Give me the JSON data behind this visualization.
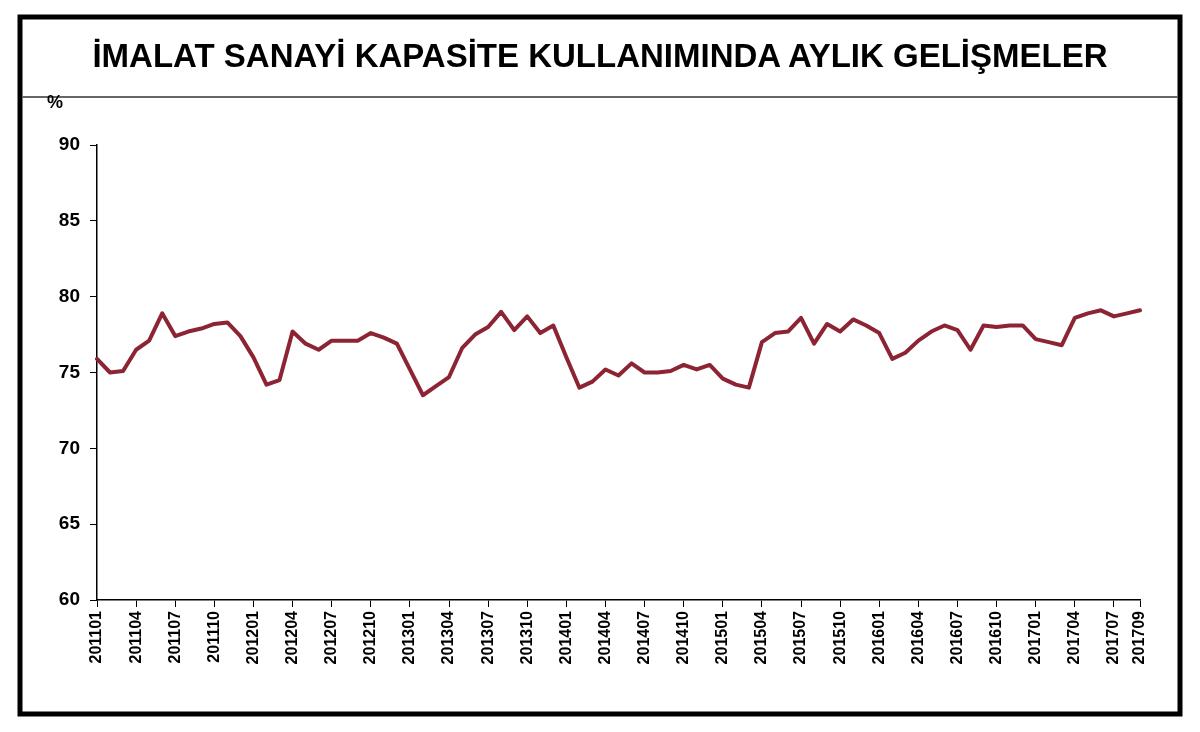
{
  "chart_data": {
    "type": "line",
    "title": "İMALAT SANAYİ KAPASİTE KULLANIMINDA AYLIK GELİŞMELER",
    "ylabel": "%",
    "categories": [
      "201101",
      null,
      null,
      "201104",
      null,
      null,
      "201107",
      null,
      null,
      "201110",
      null,
      null,
      "201201",
      null,
      null,
      "201204",
      null,
      null,
      "201207",
      null,
      null,
      "201210",
      null,
      null,
      "201301",
      null,
      null,
      "201304",
      null,
      null,
      "201307",
      null,
      null,
      "201310",
      null,
      null,
      "201401",
      null,
      null,
      "201404",
      null,
      null,
      "201407",
      null,
      null,
      "201410",
      null,
      null,
      "201501",
      null,
      null,
      "201504",
      null,
      null,
      "201507",
      null,
      null,
      "201510",
      null,
      null,
      "201601",
      null,
      null,
      "201604",
      null,
      null,
      "201607",
      null,
      null,
      "201610",
      null,
      null,
      "201701",
      null,
      null,
      "201704",
      null,
      null,
      "201707",
      null,
      "201709"
    ],
    "series": [
      {
        "color": "#8c2433",
        "values": [
          75.9,
          75.0,
          75.1,
          76.5,
          77.1,
          78.9,
          77.4,
          77.7,
          77.9,
          78.2,
          78.3,
          77.4,
          76.0,
          74.2,
          74.5,
          77.7,
          76.9,
          76.5,
          77.1,
          77.1,
          77.1,
          77.6,
          77.3,
          76.9,
          75.2,
          73.5,
          74.1,
          74.7,
          76.6,
          77.5,
          78.0,
          79.0,
          77.8,
          78.7,
          77.6,
          78.1,
          76.0,
          74.0,
          74.4,
          75.2,
          74.8,
          75.6,
          75.0,
          75.0,
          75.1,
          75.5,
          75.2,
          75.5,
          74.6,
          74.2,
          74.0,
          77.0,
          77.6,
          77.7,
          78.6,
          76.9,
          78.2,
          77.7,
          78.5,
          78.1,
          77.6,
          75.9,
          76.3,
          77.1,
          77.7,
          78.1,
          77.8,
          76.5,
          78.1,
          78.0,
          78.1,
          78.1,
          77.2,
          77.0,
          76.8,
          78.6,
          78.9,
          79.1,
          78.7,
          78.9,
          79.1
        ]
      }
    ],
    "ylim": [
      60,
      90
    ],
    "yticks": [
      60,
      65,
      70,
      75,
      80,
      85,
      90
    ],
    "grid": false,
    "marker": "none"
  }
}
